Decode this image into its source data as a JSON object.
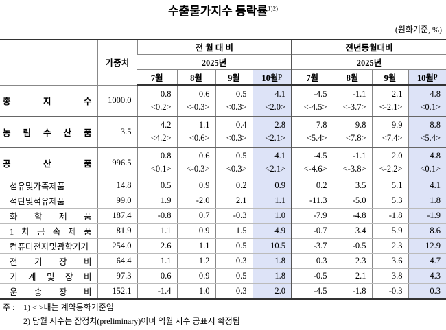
{
  "title": "수출물가지수 등락률",
  "title_note": "1)2)",
  "unit": "(원화기준, %)",
  "header": {
    "weight": "가중치",
    "mom": "전 월 대 비",
    "yoy": "전년동월대비",
    "year": "2025년",
    "months": [
      "7월",
      "8월",
      "9월",
      "10월"
    ],
    "prelim": "p"
  },
  "table": {
    "rows": [
      {
        "label": "총 지 수",
        "weight": "1000.0",
        "values": [
          "0.8",
          "0.6",
          "0.5",
          "4.1",
          "-4.5",
          "-1.1",
          "2.1",
          "4.8"
        ],
        "contract": [
          "<0.2>",
          "<-0.3>",
          "<0.3>",
          "<2.0>",
          "<-4.5>",
          "<-3.7>",
          "<-2.1>",
          "<0.1>"
        ]
      },
      {
        "label": "농 림 수 산 품",
        "weight": "3.5",
        "values": [
          "4.2",
          "1.1",
          "0.4",
          "2.8",
          "7.8",
          "9.8",
          "9.9",
          "8.8"
        ],
        "contract": [
          "<4.2>",
          "<0.6>",
          "<0.3>",
          "<2.1>",
          "<5.4>",
          "<7.8>",
          "<7.4>",
          "<5.4>"
        ]
      },
      {
        "label": "공 산 품",
        "weight": "996.5",
        "values": [
          "0.8",
          "0.6",
          "0.5",
          "4.1",
          "-4.5",
          "-1.1",
          "2.0",
          "4.8"
        ],
        "contract": [
          "<0.1>",
          "<-0.3>",
          "<0.3>",
          "<2.1>",
          "<-4.6>",
          "<-3.8>",
          "<-2.2>",
          "<0.1>"
        ]
      },
      {
        "label": "섬유및가죽제품",
        "weight": "14.8",
        "values": [
          "0.5",
          "0.9",
          "0.2",
          "0.9",
          "0.2",
          "3.5",
          "5.1",
          "4.1"
        ]
      },
      {
        "label": "석탄및석유제품",
        "weight": "99.0",
        "values": [
          "1.9",
          "-2.0",
          "2.1",
          "1.1",
          "-11.3",
          "-5.0",
          "5.3",
          "1.8"
        ]
      },
      {
        "label": "화 학 제 품",
        "weight": "187.4",
        "values": [
          "-0.8",
          "0.7",
          "-0.3",
          "1.0",
          "-7.9",
          "-4.8",
          "-1.8",
          "-1.9"
        ]
      },
      {
        "label": "1 차 금 속 제 품",
        "weight": "81.9",
        "values": [
          "1.1",
          "0.9",
          "1.5",
          "4.9",
          "-0.7",
          "3.4",
          "5.9",
          "8.6"
        ]
      },
      {
        "label": "컴퓨터전자및광학기기",
        "weight": "254.0",
        "values": [
          "2.6",
          "1.1",
          "0.5",
          "10.5",
          "-3.7",
          "-0.5",
          "2.3",
          "12.9"
        ]
      },
      {
        "label": "전 기 장 비",
        "weight": "64.4",
        "values": [
          "1.1",
          "1.2",
          "0.3",
          "1.8",
          "0.3",
          "2.3",
          "3.6",
          "4.7"
        ]
      },
      {
        "label": "기 계 및 장 비",
        "weight": "97.3",
        "values": [
          "0.6",
          "0.9",
          "0.5",
          "1.8",
          "-0.5",
          "2.1",
          "3.8",
          "4.3"
        ]
      },
      {
        "label": "운 송 장 비",
        "weight": "152.1",
        "values": [
          "-1.4",
          "1.0",
          "0.3",
          "2.0",
          "-4.5",
          "-1.8",
          "-0.3",
          "0.3"
        ]
      }
    ]
  },
  "notes": {
    "label": "주 :",
    "items": [
      "1) < >내는 계약통화기준임",
      "2) 당월 지수는 잠정치(preliminary)이며 익월 지수 공표시 확정됨"
    ]
  }
}
